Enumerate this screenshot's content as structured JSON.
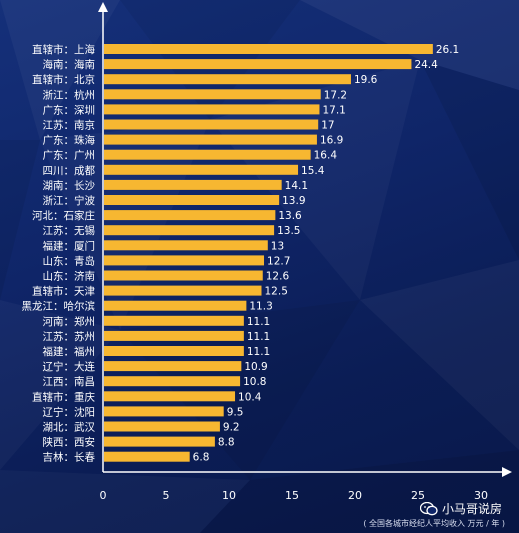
{
  "colors": {
    "bar": "#f7b731",
    "axis": "#ffffff",
    "background": "#0f2568"
  },
  "chart_data": {
    "type": "bar",
    "orientation": "horizontal",
    "categories": [
      "直辖市：上海",
      "海南：海南",
      "直辖市：北京",
      "浙江：杭州",
      "广东：深圳",
      "江苏：南京",
      "广东：珠海",
      "广东：广州",
      "四川：成都",
      "湖南：长沙",
      "浙江：宁波",
      "河北：石家庄",
      "江苏：无锡",
      "福建：厦门",
      "山东：青岛",
      "山东：济南",
      "直辖市：天津",
      "黑龙江：哈尔滨",
      "河南：郑州",
      "江苏：苏州",
      "福建：福州",
      "辽宁：大连",
      "江西：南昌",
      "直辖市：重庆",
      "辽宁：沈阳",
      "湖北：武汉",
      "陕西：西安",
      "吉林：长春"
    ],
    "values": [
      26.1,
      24.4,
      19.6,
      17.2,
      17.1,
      17,
      16.9,
      16.4,
      15.4,
      14.1,
      13.9,
      13.6,
      13.5,
      13,
      12.7,
      12.6,
      12.5,
      11.3,
      11.1,
      11.1,
      11.1,
      10.9,
      10.8,
      10.4,
      9.5,
      9.2,
      8.8,
      6.8
    ],
    "x_ticks": [
      0,
      5,
      10,
      15,
      20,
      25,
      30
    ],
    "xlim": [
      0,
      30
    ],
    "grid": false
  },
  "watermark": {
    "text": "小马哥说房",
    "icon": "wechat-icon"
  },
  "footnote": "( 全国各城市经纪人平均收入 万元 / 年 )"
}
